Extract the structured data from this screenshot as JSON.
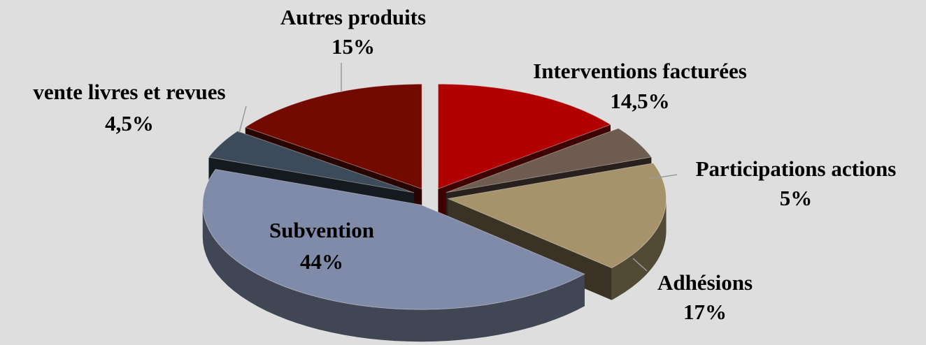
{
  "chart_data": {
    "type": "pie3d",
    "categories": [
      "Interventions facturées",
      "Participations actions",
      "Adhésions",
      "Subvention",
      "vente livres et revues",
      "Autres produits"
    ],
    "values": [
      14.5,
      5,
      17,
      44,
      4.5,
      15
    ],
    "value_labels": [
      "14,5%",
      "5%",
      "17%",
      "44%",
      "4,5%",
      "15%"
    ],
    "colors": [
      "#b00000",
      "#6e5c50",
      "#a6936b",
      "#7f8ba8",
      "#3c4a5a",
      "#720a00"
    ]
  }
}
